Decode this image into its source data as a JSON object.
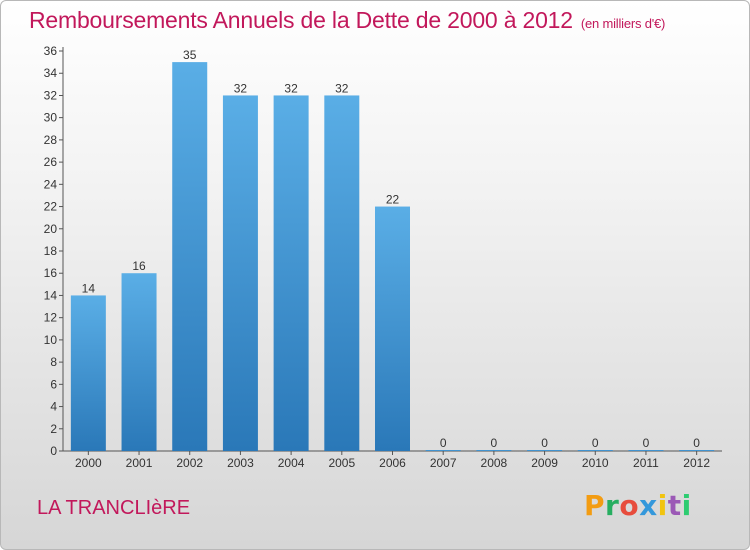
{
  "header": {
    "title": "Remboursements Annuels de la Dette de 2000 à 2012",
    "subtitle": "(en milliers d'€)"
  },
  "footer": {
    "town": "LA TRANCLIèRE",
    "logo_letters": [
      "P",
      "r",
      "o",
      "x",
      "i",
      "t",
      "i"
    ]
  },
  "colors": {
    "title": "#c2185b",
    "bar_top": "#5aaee6",
    "bar_bottom": "#2a78b8",
    "logo": [
      "#f39c12",
      "#27ae60",
      "#e74c3c",
      "#3498db",
      "#f1c40f",
      "#9b59b6",
      "#2ecc71"
    ]
  },
  "chart_data": {
    "type": "bar",
    "title": "Remboursements Annuels de la Dette de 2000 à 2012",
    "subtitle": "(en milliers d'€)",
    "categories": [
      "2000",
      "2001",
      "2002",
      "2003",
      "2004",
      "2005",
      "2006",
      "2007",
      "2008",
      "2009",
      "2010",
      "2011",
      "2012"
    ],
    "values": [
      14,
      16,
      35,
      32,
      32,
      32,
      22,
      0,
      0,
      0,
      0,
      0,
      0
    ],
    "data_labels": [
      "14",
      "16",
      "35",
      "32",
      "32",
      "32",
      "22",
      "0",
      "0",
      "0",
      "0",
      "0",
      "0"
    ],
    "ylim": [
      0,
      36
    ],
    "yticks": [
      0,
      2,
      4,
      6,
      8,
      10,
      12,
      14,
      16,
      18,
      20,
      22,
      24,
      26,
      28,
      30,
      32,
      34,
      36
    ],
    "grid": false,
    "legend": "none"
  }
}
